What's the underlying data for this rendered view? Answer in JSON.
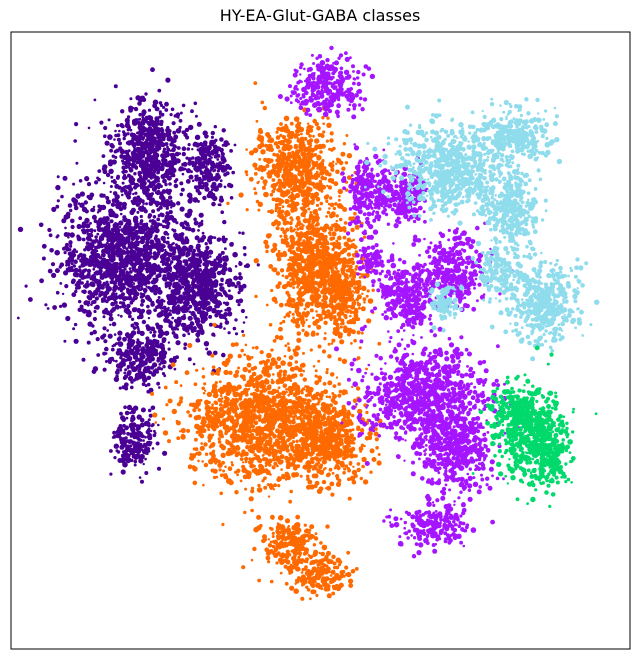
{
  "chart_data": {
    "type": "scatter",
    "title": "HY-EA-Glut-GABA classes",
    "xlabel": "",
    "ylabel": "",
    "axes_ticks": false,
    "grid": false,
    "legend": "none",
    "xlim": [
      0,
      100
    ],
    "ylim": [
      0,
      100
    ],
    "series": [
      {
        "color": "#4b0095",
        "clusters": [
          {
            "x": 22,
            "y": 80,
            "rx": 6,
            "ry": 8
          },
          {
            "x": 18,
            "y": 63,
            "rx": 9,
            "ry": 10
          },
          {
            "x": 30,
            "y": 59,
            "rx": 6,
            "ry": 8
          },
          {
            "x": 21,
            "y": 47,
            "rx": 5,
            "ry": 4
          },
          {
            "x": 20,
            "y": 34,
            "rx": 3,
            "ry": 5
          },
          {
            "x": 32,
            "y": 78,
            "rx": 3,
            "ry": 5
          }
        ]
      },
      {
        "color": "#ff6a00",
        "clusters": [
          {
            "x": 46,
            "y": 78,
            "rx": 6,
            "ry": 7
          },
          {
            "x": 49,
            "y": 62,
            "rx": 6,
            "ry": 10
          },
          {
            "x": 54,
            "y": 57,
            "rx": 3,
            "ry": 6
          },
          {
            "x": 41,
            "y": 37,
            "rx": 11,
            "ry": 9
          },
          {
            "x": 52,
            "y": 34,
            "rx": 5,
            "ry": 6
          },
          {
            "x": 45,
            "y": 17,
            "rx": 4,
            "ry": 4
          },
          {
            "x": 50,
            "y": 12,
            "rx": 4,
            "ry": 3
          }
        ]
      },
      {
        "color": "#a515ff",
        "clusters": [
          {
            "x": 51,
            "y": 91,
            "rx": 5,
            "ry": 4
          },
          {
            "x": 58,
            "y": 74,
            "rx": 4,
            "ry": 5
          },
          {
            "x": 64,
            "y": 73,
            "rx": 3,
            "ry": 4
          },
          {
            "x": 71,
            "y": 61,
            "rx": 5,
            "ry": 5
          },
          {
            "x": 64,
            "y": 57,
            "rx": 4,
            "ry": 5
          },
          {
            "x": 58,
            "y": 63,
            "rx": 2,
            "ry": 3
          },
          {
            "x": 67,
            "y": 41,
            "rx": 9,
            "ry": 7
          },
          {
            "x": 72,
            "y": 32,
            "rx": 5,
            "ry": 6
          },
          {
            "x": 68,
            "y": 20,
            "rx": 5,
            "ry": 3
          }
        ]
      },
      {
        "color": "#8fdcec",
        "clusters": [
          {
            "x": 71,
            "y": 78,
            "rx": 8,
            "ry": 6
          },
          {
            "x": 81,
            "y": 83,
            "rx": 5,
            "ry": 4
          },
          {
            "x": 81,
            "y": 71,
            "rx": 4,
            "ry": 5
          },
          {
            "x": 86,
            "y": 56,
            "rx": 5,
            "ry": 6
          },
          {
            "x": 79,
            "y": 61,
            "rx": 3,
            "ry": 4
          },
          {
            "x": 70,
            "y": 56,
            "rx": 2,
            "ry": 3
          }
        ]
      },
      {
        "color": "#00d96b",
        "clusters": [
          {
            "x": 84,
            "y": 35,
            "rx": 5,
            "ry": 7
          },
          {
            "x": 81,
            "y": 39,
            "rx": 3,
            "ry": 3
          },
          {
            "x": 87,
            "y": 31,
            "rx": 3,
            "ry": 4
          }
        ]
      }
    ]
  }
}
